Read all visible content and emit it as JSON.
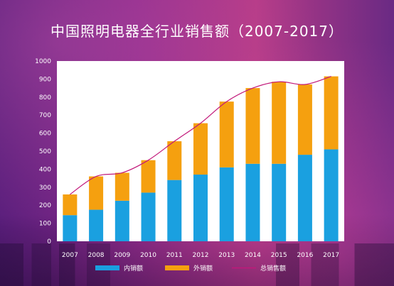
{
  "chart_data": {
    "type": "bar",
    "stacked": true,
    "title": "中国照明电器全行业销售额（2007-2017）",
    "categories": [
      "2007",
      "2008",
      "2009",
      "2010",
      "2011",
      "2012",
      "2013",
      "2014",
      "2015",
      "2016",
      "2017"
    ],
    "series": [
      {
        "name": "内销额",
        "color": "#1aa0e0",
        "values": [
          145,
          175,
          225,
          270,
          340,
          370,
          410,
          430,
          430,
          480,
          510
        ]
      },
      {
        "name": "外销额",
        "color": "#f5a00f",
        "values": [
          115,
          185,
          155,
          180,
          215,
          285,
          365,
          420,
          455,
          390,
          405
        ]
      }
    ],
    "line": {
      "name": "总销售额",
      "color": "#c2187a",
      "values": [
        260,
        360,
        380,
        450,
        555,
        655,
        775,
        850,
        885,
        870,
        915
      ]
    },
    "ylim": [
      0,
      1000
    ],
    "yticks": [
      0,
      100,
      200,
      300,
      400,
      500,
      600,
      700,
      800,
      900,
      1000
    ],
    "grid": false,
    "legend_position": "bottom"
  }
}
